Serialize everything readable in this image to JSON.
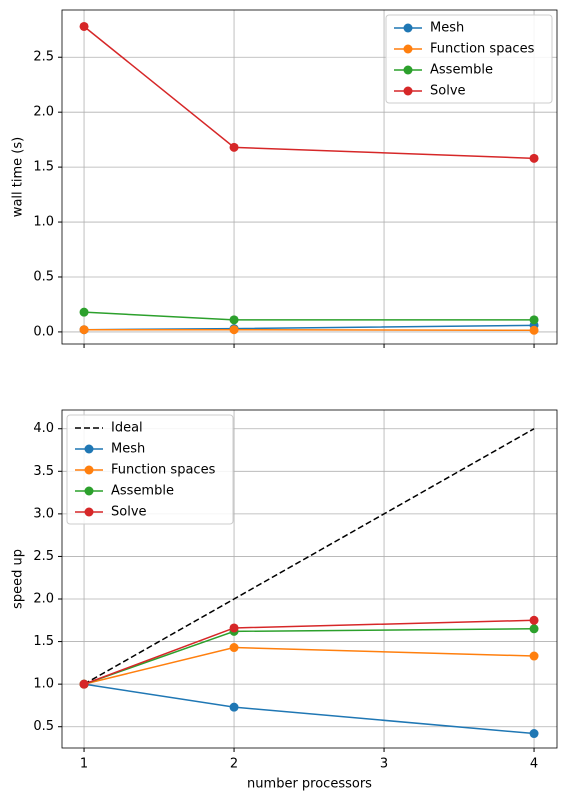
{
  "chart_data": [
    {
      "type": "line",
      "ylabel": "wall time (s)",
      "x": [
        1,
        2,
        4
      ],
      "xlim": [
        0.853,
        4.153
      ],
      "ylim": [
        -0.11,
        2.93
      ],
      "yticks": [
        {
          "value": 0,
          "label": "0.0"
        },
        0.5,
        {
          "value": 1,
          "label": "1.0"
        },
        1.5,
        {
          "value": 2,
          "label": "2.0"
        },
        2.5
      ],
      "grid": true,
      "legend": "upper right",
      "series": [
        {
          "name": "Mesh",
          "color": "#1f77b4",
          "values": [
            0.02,
            0.03,
            0.06
          ]
        },
        {
          "name": "Function spaces",
          "color": "#ff7f0e",
          "values": [
            0.02,
            0.02,
            0.015
          ]
        },
        {
          "name": "Assemble",
          "color": "#2ca02c",
          "values": [
            0.18,
            0.11,
            0.11
          ]
        },
        {
          "name": "Solve",
          "color": "#d62728",
          "values": [
            2.78,
            1.68,
            1.58
          ]
        }
      ]
    },
    {
      "type": "line",
      "ylabel": "speed up",
      "xlabel": "number processors",
      "x": [
        1,
        2,
        4
      ],
      "xlim": [
        0.853,
        4.153
      ],
      "xticks": [
        1,
        2,
        3,
        4
      ],
      "ylim": [
        0.25,
        4.22
      ],
      "yticks": [
        0.5,
        {
          "value": 1,
          "label": "1.0"
        },
        1.5,
        {
          "value": 2,
          "label": "2.0"
        },
        2.5,
        {
          "value": 3,
          "label": "3.0"
        },
        3.5,
        {
          "value": 4,
          "label": "4.0"
        }
      ],
      "grid": true,
      "legend": "upper left",
      "series": [
        {
          "name": "Ideal",
          "color": "#000000",
          "linestyle": "dashed",
          "marker": false,
          "values": [
            1,
            2,
            4
          ]
        },
        {
          "name": "Mesh",
          "color": "#1f77b4",
          "values": [
            1,
            0.73,
            0.42
          ]
        },
        {
          "name": "Function spaces",
          "color": "#ff7f0e",
          "values": [
            1,
            1.43,
            1.33
          ]
        },
        {
          "name": "Assemble",
          "color": "#2ca02c",
          "values": [
            1,
            1.62,
            1.65
          ]
        },
        {
          "name": "Solve",
          "color": "#d62728",
          "values": [
            1,
            1.66,
            1.75
          ]
        }
      ]
    }
  ]
}
